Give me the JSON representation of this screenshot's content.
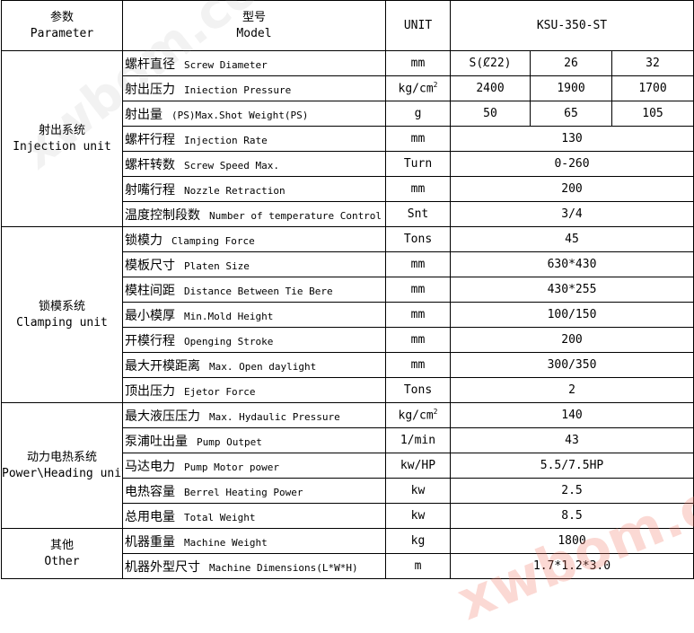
{
  "header": {
    "param_cn": "参数",
    "param_en": "Parameter",
    "model_cn": "型号",
    "model_en": "Model",
    "unit": "UNIT",
    "model_value": "KSU-350-ST"
  },
  "groups": [
    {
      "cn": "射出系统",
      "en": "Injection unit",
      "rows": 7
    },
    {
      "cn": "锁模系统",
      "en": "Clamping unit",
      "rows": 7
    },
    {
      "cn": "动力电热系统",
      "en": "Power\\Heading unit",
      "rows": 5
    },
    {
      "cn": "其他",
      "en": "Other",
      "rows": 2
    }
  ],
  "rows": [
    {
      "cn": "螺杆直径",
      "en": "Screw Diameter",
      "unit": "mm",
      "values": [
        "S(Ȼ22)",
        "26",
        "32"
      ]
    },
    {
      "cn": "射出压力",
      "en": "Iniection Pressure",
      "unit": "kg/cm",
      "unit_sup": "2",
      "values": [
        "2400",
        "1900",
        "1700"
      ]
    },
    {
      "cn": "射出量",
      "en": "(PS)Max.Shot Weight(PS)",
      "unit": "g",
      "values": [
        "50",
        "65",
        "105"
      ]
    },
    {
      "cn": "螺杆行程",
      "en": "Injection  Rate",
      "unit": "mm",
      "values": [
        "130"
      ]
    },
    {
      "cn": "螺杆转数",
      "en": "Screw Speed Max.",
      "unit": "Turn",
      "values": [
        "0-260"
      ]
    },
    {
      "cn": "射嘴行程",
      "en": "Nozzle  Retraction",
      "unit": "mm",
      "values": [
        "200"
      ]
    },
    {
      "cn": "温度控制段数",
      "en": "Number of temperature Control",
      "unit": "Snt",
      "values": [
        "3/4"
      ]
    },
    {
      "cn": "锁模力",
      "en": "Clamping Force",
      "unit": "Tons",
      "values": [
        "45"
      ]
    },
    {
      "cn": "模板尺寸",
      "en": "Platen Size",
      "unit": "mm",
      "values": [
        "630*430"
      ]
    },
    {
      "cn": "模柱间距",
      "en": "Distance Between Tie Bere",
      "unit": "mm",
      "values": [
        "430*255"
      ]
    },
    {
      "cn": "最小模厚",
      "en": "Min.Mold Height",
      "unit": "mm",
      "values": [
        "100/150"
      ]
    },
    {
      "cn": "开模行程",
      "en": "Openging Stroke",
      "unit": "mm",
      "values": [
        "200"
      ]
    },
    {
      "cn": "最大开模距离",
      "en": "Max. Open daylight",
      "unit": "mm",
      "values": [
        "300/350"
      ]
    },
    {
      "cn": "顶出压力",
      "en": "Ejetor Force",
      "unit": "Tons",
      "values": [
        "2"
      ]
    },
    {
      "cn": "最大液压压力",
      "en": "Max. Hydaulic Pressure",
      "unit": "kg/cm",
      "unit_sup": "2",
      "values": [
        "140"
      ]
    },
    {
      "cn": "泵浦吐出量",
      "en": "Pump Outpet",
      "unit": "1/min",
      "values": [
        "43"
      ]
    },
    {
      "cn": "马达电力",
      "en": "Pump Motor power",
      "unit": "kw/HP",
      "values": [
        "5.5/7.5HP"
      ]
    },
    {
      "cn": "电热容量",
      "en": "Berrel Heating Power",
      "unit": "kw",
      "values": [
        "2.5"
      ]
    },
    {
      "cn": "总用电量",
      "en": "Total Weight",
      "unit": "kw",
      "values": [
        "8.5"
      ]
    },
    {
      "cn": "机器重量",
      "en": "Machine Weight",
      "unit": "kg",
      "values": [
        "1800"
      ]
    },
    {
      "cn": "机器外型尺寸",
      "en": "Machine Dimensions(L*W*H)",
      "unit": "m",
      "values": [
        "1.7*1.2*3.0"
      ]
    }
  ],
  "watermark": "xwbom.com"
}
